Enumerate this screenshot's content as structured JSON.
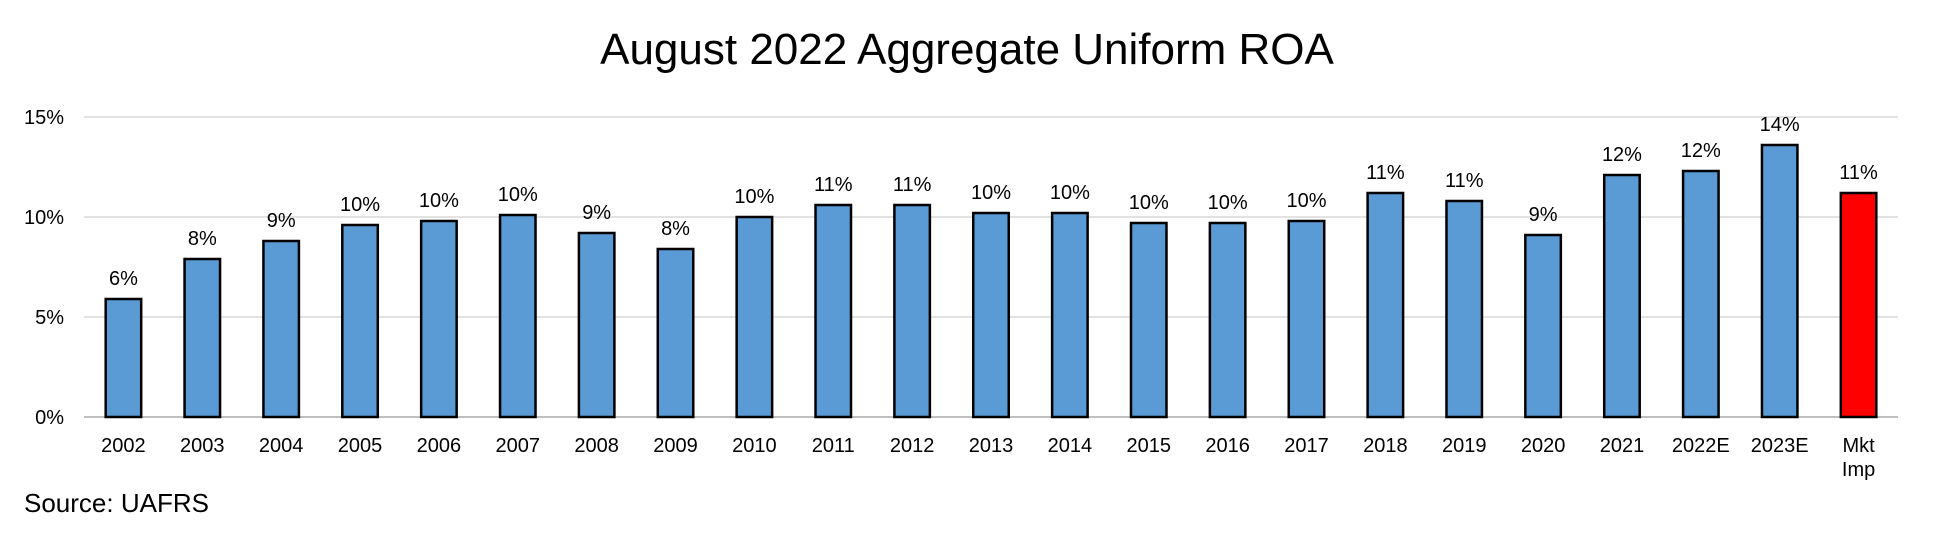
{
  "chart_data": {
    "type": "bar",
    "title": "August 2022 Aggregate Uniform ROA",
    "categories": [
      "2002",
      "2003",
      "2004",
      "2005",
      "2006",
      "2007",
      "2008",
      "2009",
      "2010",
      "2011",
      "2012",
      "2013",
      "2014",
      "2015",
      "2016",
      "2017",
      "2018",
      "2019",
      "2020",
      "2021",
      "2022E",
      "2023E",
      "Mkt Imp"
    ],
    "values": [
      5.9,
      7.9,
      8.8,
      9.6,
      9.8,
      10.1,
      9.2,
      8.4,
      10.0,
      10.6,
      10.6,
      10.2,
      10.2,
      9.7,
      9.7,
      9.8,
      11.2,
      10.8,
      9.1,
      12.1,
      12.3,
      13.6,
      11.2
    ],
    "data_labels": [
      "6%",
      "8%",
      "9%",
      "10%",
      "10%",
      "10%",
      "9%",
      "8%",
      "10%",
      "11%",
      "11%",
      "10%",
      "10%",
      "10%",
      "10%",
      "10%",
      "11%",
      "11%",
      "9%",
      "12%",
      "12%",
      "14%",
      "11%"
    ],
    "y_ticks": [
      "0%",
      "5%",
      "10%",
      "15%"
    ],
    "ylim": [
      0,
      15
    ],
    "xlabel": "",
    "ylabel": "",
    "grid": true,
    "legend": "none",
    "colors": {
      "bar": "#5B9BD5",
      "highlight": "#FF0000",
      "bar_edge": "#000000",
      "grid": "#D9D9D9"
    },
    "highlight_index": 22
  },
  "source": "Source: UAFRS"
}
